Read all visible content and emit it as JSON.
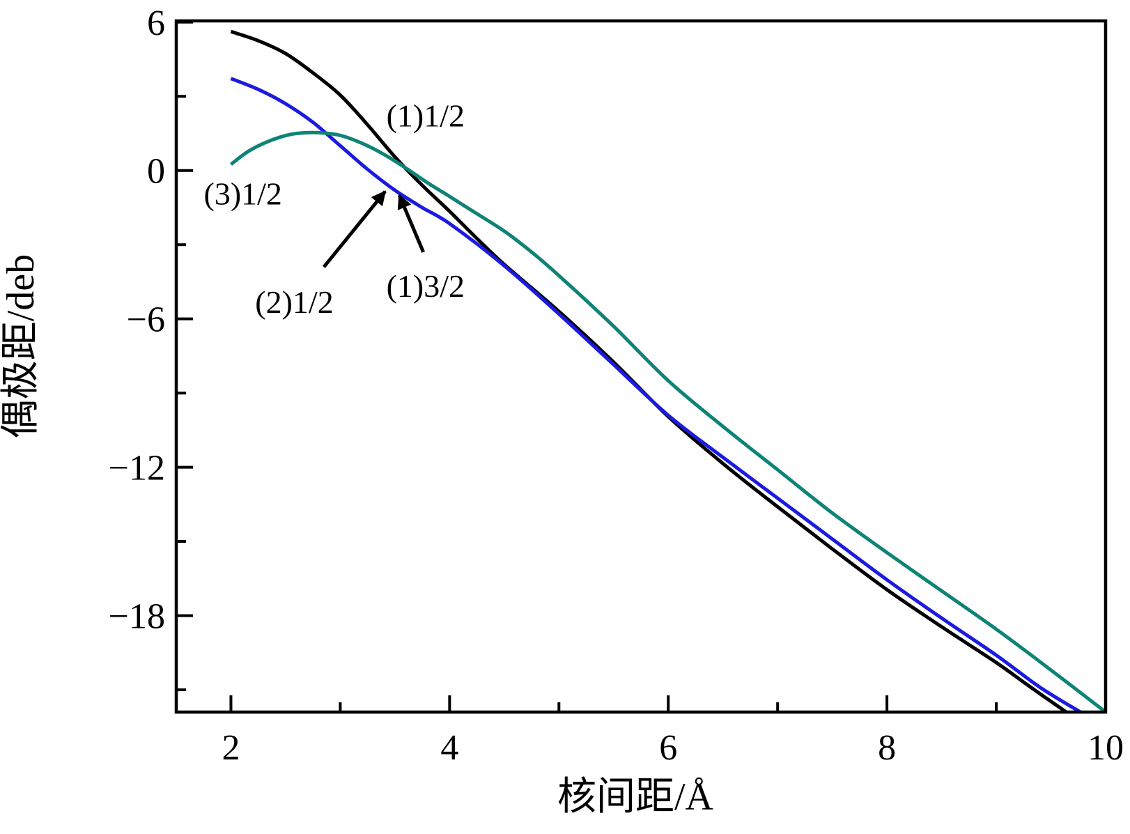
{
  "figure": {
    "background": "#ffffff"
  },
  "chart_data": {
    "type": "line",
    "title": "",
    "xlabel": "核间距/Å",
    "ylabel": "偶极距/deb",
    "xlim": [
      1.5,
      10
    ],
    "ylim": [
      -21.9,
      6.05
    ],
    "grid": false,
    "legend_position": "none",
    "x_ticks": {
      "major": [
        2,
        4,
        6,
        8,
        10
      ],
      "labels": [
        "2",
        "4",
        "6",
        "8",
        "10"
      ],
      "minor": [
        3,
        5,
        7,
        9
      ]
    },
    "y_ticks": {
      "major": [
        6,
        0,
        -6,
        -12,
        -18
      ],
      "labels": [
        "6",
        "0",
        "−6",
        "−12",
        "−18"
      ],
      "minor": [
        3,
        -3,
        -9,
        -15,
        -21
      ]
    },
    "series": [
      {
        "name": "state-1-1-2",
        "label": "(1)1/2",
        "color": "#000000",
        "points": [
          [
            2.0,
            5.62
          ],
          [
            2.25,
            5.25
          ],
          [
            2.5,
            4.73
          ],
          [
            2.75,
            3.95
          ],
          [
            3.0,
            3.05
          ],
          [
            3.25,
            1.85
          ],
          [
            3.5,
            0.55
          ],
          [
            3.75,
            -0.6
          ],
          [
            4.0,
            -1.65
          ],
          [
            4.25,
            -2.75
          ],
          [
            4.5,
            -3.8
          ],
          [
            5.0,
            -5.7
          ],
          [
            5.5,
            -7.75
          ],
          [
            6.0,
            -9.95
          ],
          [
            6.5,
            -11.85
          ],
          [
            7.0,
            -13.6
          ],
          [
            7.5,
            -15.3
          ],
          [
            8.0,
            -16.95
          ],
          [
            8.5,
            -18.45
          ],
          [
            9.0,
            -19.9
          ],
          [
            9.3,
            -20.85
          ],
          [
            9.64,
            -21.9
          ]
        ]
      },
      {
        "name": "states-1-3-2-and-2-1-2",
        "label": "(1)3/2 / (2)1/2",
        "color": "#1b1be0",
        "points": [
          [
            2.0,
            3.72
          ],
          [
            2.25,
            3.28
          ],
          [
            2.5,
            2.7
          ],
          [
            2.75,
            1.95
          ],
          [
            3.0,
            1.0
          ],
          [
            3.25,
            0.05
          ],
          [
            3.5,
            -0.8
          ],
          [
            3.75,
            -1.5
          ],
          [
            4.0,
            -2.15
          ],
          [
            4.5,
            -3.85
          ],
          [
            5.0,
            -5.8
          ],
          [
            5.5,
            -7.85
          ],
          [
            6.0,
            -9.9
          ],
          [
            6.5,
            -11.6
          ],
          [
            7.0,
            -13.25
          ],
          [
            7.5,
            -14.9
          ],
          [
            8.0,
            -16.55
          ],
          [
            8.5,
            -18.1
          ],
          [
            9.0,
            -19.6
          ],
          [
            9.4,
            -20.9
          ],
          [
            9.77,
            -21.9
          ]
        ]
      },
      {
        "name": "state-3-1-2",
        "label": "(3)1/2",
        "color": "#0e8376",
        "points": [
          [
            2.0,
            0.25
          ],
          [
            2.15,
            0.75
          ],
          [
            2.3,
            1.1
          ],
          [
            2.45,
            1.35
          ],
          [
            2.6,
            1.5
          ],
          [
            2.8,
            1.53
          ],
          [
            3.0,
            1.42
          ],
          [
            3.2,
            1.1
          ],
          [
            3.4,
            0.65
          ],
          [
            3.6,
            0.1
          ],
          [
            3.8,
            -0.5
          ],
          [
            4.0,
            -1.05
          ],
          [
            4.25,
            -1.75
          ],
          [
            4.5,
            -2.45
          ],
          [
            4.75,
            -3.3
          ],
          [
            5.0,
            -4.25
          ],
          [
            5.5,
            -6.3
          ],
          [
            6.0,
            -8.5
          ],
          [
            6.5,
            -10.35
          ],
          [
            7.0,
            -12.1
          ],
          [
            7.5,
            -13.85
          ],
          [
            8.0,
            -15.45
          ],
          [
            8.5,
            -17.0
          ],
          [
            9.0,
            -18.55
          ],
          [
            9.5,
            -20.2
          ],
          [
            10.0,
            -21.9
          ]
        ]
      }
    ],
    "annotations": [
      {
        "text": "(1)1/2",
        "x": 3.78,
        "y": 2.23
      },
      {
        "text": "(3)1/2",
        "x": 2.11,
        "y": -0.93
      },
      {
        "text": "(2)1/2",
        "x": 2.58,
        "y": -5.3
      },
      {
        "text": "(1)3/2",
        "x": 3.78,
        "y": -4.65
      }
    ],
    "arrows": [
      {
        "from": [
          2.85,
          -3.9
        ],
        "to": [
          3.41,
          -0.85
        ]
      },
      {
        "from": [
          3.76,
          -3.3
        ],
        "to": [
          3.54,
          -1.0
        ]
      }
    ]
  }
}
